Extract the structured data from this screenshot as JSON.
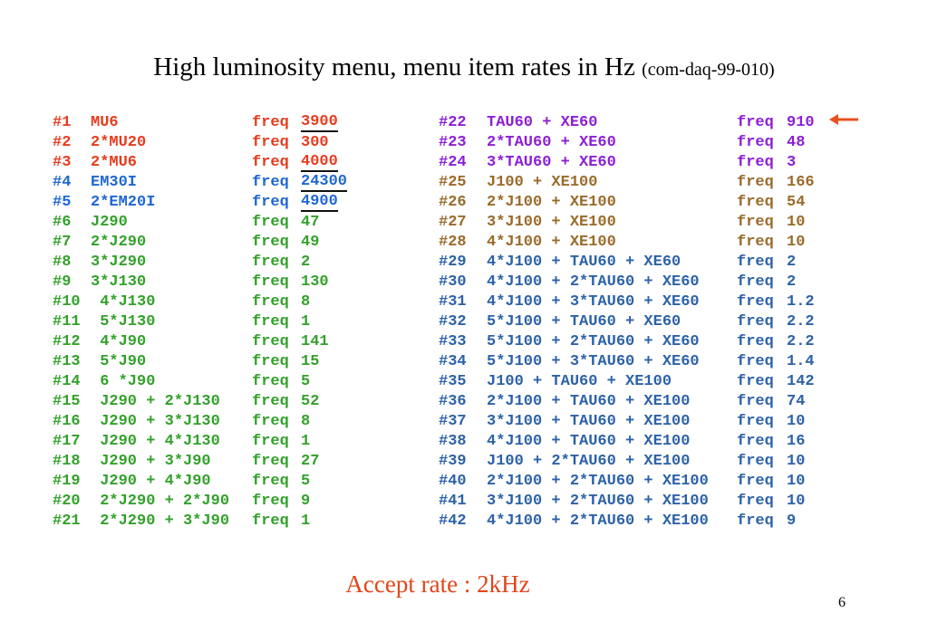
{
  "title": {
    "main": "High luminosity menu, menu item rates in Hz",
    "sub": "(com-daq-99-010)"
  },
  "colors": {
    "red": "#e63c1e",
    "blue": "#1f67d2",
    "green": "#33a12b",
    "purple": "#8c1fd6",
    "brown": "#9a6b2a",
    "steel": "#2d62a8"
  },
  "left_items": [
    {
      "num": "#1",
      "expr": "MU6",
      "freq": "freq",
      "val": "3900",
      "color": "#e63c1e",
      "underline": true
    },
    {
      "num": "#2",
      "expr": "2*MU20",
      "freq": "freq",
      "val": "300",
      "color": "#e63c1e",
      "underline": false
    },
    {
      "num": "#3",
      "expr": "2*MU6",
      "freq": "freq",
      "val": "4000",
      "color": "#e63c1e",
      "underline": true
    },
    {
      "num": "#4",
      "expr": "EM30I",
      "freq": "freq",
      "val": "24300",
      "color": "#1f67d2",
      "underline": true
    },
    {
      "num": "#5",
      "expr": "2*EM20I",
      "freq": "freq",
      "val": "4900",
      "color": "#1f67d2",
      "underline": true
    },
    {
      "num": "#6",
      "expr": "J290",
      "freq": "freq",
      "val": "47",
      "color": "#33a12b",
      "underline": false
    },
    {
      "num": "#7",
      "expr": "2*J290",
      "freq": "freq",
      "val": "49",
      "color": "#33a12b",
      "underline": false
    },
    {
      "num": "#8",
      "expr": "3*J290",
      "freq": "freq",
      "val": "2",
      "color": "#33a12b",
      "underline": false
    },
    {
      "num": "#9",
      "expr": "3*J130",
      "freq": "freq",
      "val": "130",
      "color": "#33a12b",
      "underline": false
    },
    {
      "num": "#10",
      "expr": " 4*J130",
      "freq": "freq",
      "val": "8",
      "color": "#33a12b",
      "underline": false
    },
    {
      "num": "#11",
      "expr": " 5*J130",
      "freq": "freq",
      "val": "1",
      "color": "#33a12b",
      "underline": false
    },
    {
      "num": "#12",
      "expr": " 4*J90",
      "freq": "freq",
      "val": "141",
      "color": "#33a12b",
      "underline": false
    },
    {
      "num": "#13",
      "expr": " 5*J90",
      "freq": "freq",
      "val": "15",
      "color": "#33a12b",
      "underline": false
    },
    {
      "num": "#14",
      "expr": " 6 *J90",
      "freq": "freq",
      "val": "5",
      "color": "#33a12b",
      "underline": false
    },
    {
      "num": "#15",
      "expr": " J290 + 2*J130",
      "freq": "freq",
      "val": "52",
      "color": "#33a12b",
      "underline": false
    },
    {
      "num": "#16",
      "expr": " J290 + 3*J130",
      "freq": "freq",
      "val": "8",
      "color": "#33a12b",
      "underline": false
    },
    {
      "num": "#17",
      "expr": " J290 + 4*J130",
      "freq": "freq",
      "val": "1",
      "color": "#33a12b",
      "underline": false
    },
    {
      "num": "#18",
      "expr": " J290 + 3*J90",
      "freq": "freq",
      "val": "27",
      "color": "#33a12b",
      "underline": false
    },
    {
      "num": "#19",
      "expr": " J290 + 4*J90",
      "freq": "freq",
      "val": "5",
      "color": "#33a12b",
      "underline": false
    },
    {
      "num": "#20",
      "expr": " 2*J290 + 2*J90",
      "freq": "freq",
      "val": "9",
      "color": "#33a12b",
      "underline": false
    },
    {
      "num": "#21",
      "expr": " 2*J290 + 3*J90",
      "freq": "freq",
      "val": "1",
      "color": "#33a12b",
      "underline": false
    }
  ],
  "right_items": [
    {
      "num": "#22",
      "expr": "TAU60 + XE60",
      "freq": "freq",
      "val": "910",
      "color": "#8c1fd6"
    },
    {
      "num": "#23",
      "expr": "2*TAU60 + XE60",
      "freq": "freq",
      "val": "48",
      "color": "#8c1fd6"
    },
    {
      "num": "#24",
      "expr": "3*TAU60 + XE60",
      "freq": "freq",
      "val": "3",
      "color": "#8c1fd6"
    },
    {
      "num": "#25",
      "expr": "J100 + XE100",
      "freq": "freq",
      "val": "166",
      "color": "#9a6b2a"
    },
    {
      "num": "#26",
      "expr": "2*J100 + XE100",
      "freq": "freq",
      "val": "54",
      "color": "#9a6b2a"
    },
    {
      "num": "#27",
      "expr": "3*J100 + XE100",
      "freq": "freq",
      "val": "10",
      "color": "#9a6b2a"
    },
    {
      "num": "#28",
      "expr": "4*J100 + XE100",
      "freq": "freq",
      "val": "10",
      "color": "#9a6b2a"
    },
    {
      "num": "#29",
      "expr": "4*J100 + TAU60 + XE60",
      "freq": "freq",
      "val": "2",
      "color": "#2d62a8"
    },
    {
      "num": "#30",
      "expr": "4*J100 + 2*TAU60 + XE60",
      "freq": "freq",
      "val": "2",
      "color": "#2d62a8"
    },
    {
      "num": "#31",
      "expr": "4*J100 + 3*TAU60 + XE60",
      "freq": "freq",
      "val": "1.2",
      "color": "#2d62a8"
    },
    {
      "num": "#32",
      "expr": "5*J100 + TAU60 + XE60",
      "freq": "freq",
      "val": "2.2",
      "color": "#2d62a8"
    },
    {
      "num": "#33",
      "expr": "5*J100 + 2*TAU60 + XE60",
      "freq": "freq",
      "val": "2.2",
      "color": "#2d62a8"
    },
    {
      "num": "#34",
      "expr": "5*J100 + 3*TAU60 + XE60",
      "freq": "freq",
      "val": "1.4",
      "color": "#2d62a8"
    },
    {
      "num": "#35",
      "expr": "J100 + TAU60 + XE100",
      "freq": "freq",
      "val": "142",
      "color": "#2d62a8"
    },
    {
      "num": "#36",
      "expr": "2*J100 + TAU60 + XE100",
      "freq": "freq",
      "val": "74",
      "color": "#2d62a8"
    },
    {
      "num": "#37",
      "expr": "3*J100 + TAU60 + XE100",
      "freq": "freq",
      "val": "10",
      "color": "#2d62a8"
    },
    {
      "num": "#38",
      "expr": "4*J100 + TAU60 + XE100",
      "freq": "freq",
      "val": "16",
      "color": "#2d62a8"
    },
    {
      "num": "#39",
      "expr": "J100 + 2*TAU60 + XE100",
      "freq": "freq",
      "val": "10",
      "color": "#2d62a8"
    },
    {
      "num": "#40",
      "expr": "2*J100 + 2*TAU60 + XE100",
      "freq": "freq",
      "val": "10",
      "color": "#2d62a8"
    },
    {
      "num": "#41",
      "expr": "3*J100 + 2*TAU60 + XE100",
      "freq": "freq",
      "val": "10",
      "color": "#2d62a8"
    },
    {
      "num": "#42",
      "expr": "4*J100 + 2*TAU60 + XE100",
      "freq": "freq",
      "val": "9",
      "color": "#2d62a8"
    }
  ],
  "arrow": {
    "icon": "left-arrow-icon",
    "color": "#e8501e"
  },
  "footer": {
    "accept_rate": "Accept rate : 2kHz"
  },
  "page_number": "6"
}
